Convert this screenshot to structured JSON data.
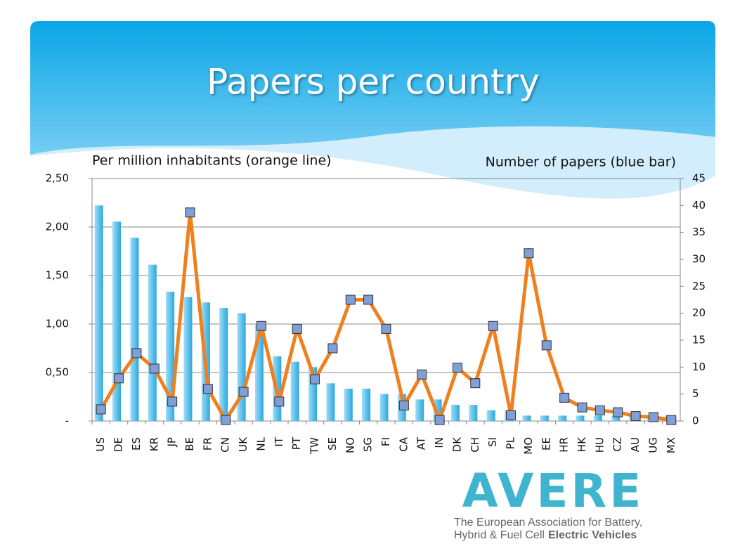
{
  "chart_data": {
    "type": "combo",
    "title": "Papers per country",
    "y_label": "Per million inhabitants (orange line)",
    "y2_label": "Number of papers (blue bar)",
    "categories": [
      "US",
      "DE",
      "ES",
      "KR",
      "JP",
      "BE",
      "FR",
      "CN",
      "UK",
      "NL",
      "IT",
      "PT",
      "TW",
      "SE",
      "NO",
      "SG",
      "FI",
      "CA",
      "AT",
      "IN",
      "DK",
      "CH",
      "SI",
      "PL",
      "MO",
      "EE",
      "HR",
      "HK",
      "HU",
      "CZ",
      "AU",
      "UG",
      "MX"
    ],
    "series": [
      {
        "type": "bar",
        "axis": "y2",
        "color": "#3fb0e6",
        "values": [
          40,
          37,
          34,
          29,
          24,
          23,
          22,
          21,
          20,
          18,
          12,
          11,
          10,
          7,
          6,
          6,
          5,
          5,
          4,
          4,
          3,
          3,
          2,
          2,
          1,
          1,
          1,
          1,
          1,
          1,
          1,
          1,
          1
        ]
      },
      {
        "type": "line",
        "axis": "y",
        "color": "#f07f1e",
        "marker_color": "#7f9fd6",
        "values": [
          0.12,
          0.44,
          0.7,
          0.54,
          0.2,
          2.15,
          0.33,
          0.01,
          0.3,
          0.98,
          0.2,
          0.95,
          0.43,
          0.75,
          1.25,
          1.25,
          0.95,
          0.16,
          0.48,
          0.01,
          0.55,
          0.39,
          0.98,
          0.06,
          1.73,
          0.78,
          0.24,
          0.14,
          0.11,
          0.09,
          0.05,
          0.04,
          0.01
        ]
      }
    ],
    "ylim": [
      0,
      2.5
    ],
    "yticks": [
      {
        "value": 0,
        "label": "-"
      },
      {
        "value": 0.5,
        "label": "0,50"
      },
      {
        "value": 1,
        "label": "1,00"
      },
      {
        "value": 1.5,
        "label": "1,50"
      },
      {
        "value": 2,
        "label": "2,00"
      },
      {
        "value": 2.5,
        "label": "2,50"
      }
    ],
    "y2lim": [
      0,
      45
    ],
    "y2ticks": [
      0,
      5,
      10,
      15,
      20,
      25,
      30,
      35,
      40,
      45
    ],
    "grid": true
  },
  "logo": {
    "name": "AVERE",
    "tagline_1": "The European Association for Battery,",
    "tagline_2": "Hybrid & Fuel Cell",
    "tagline_2_bold": "Electric Vehicles"
  }
}
